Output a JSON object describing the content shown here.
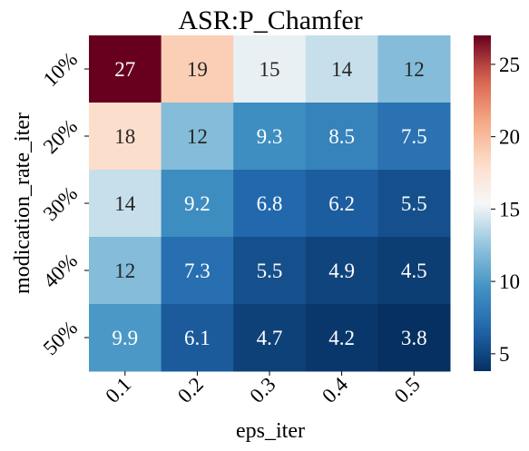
{
  "chart_data": {
    "type": "heatmap",
    "title": "ASR:P_Chamfer",
    "xlabel": "eps_iter",
    "ylabel": "modication_rate_iter",
    "x_categories": [
      "0.1",
      "0.2",
      "0.3",
      "0.4",
      "0.5"
    ],
    "y_categories": [
      "10%",
      "20%",
      "30%",
      "40%",
      "50%"
    ],
    "values": [
      [
        27,
        19,
        15,
        14,
        12
      ],
      [
        18,
        12,
        9.3,
        8.5,
        7.5
      ],
      [
        14,
        9.2,
        6.8,
        6.2,
        5.5
      ],
      [
        12,
        7.3,
        5.5,
        4.9,
        4.5
      ],
      [
        9.9,
        6.1,
        4.7,
        4.2,
        3.8
      ]
    ],
    "colormap": "RdBu_r",
    "vmin": 3.8,
    "vmax": 27,
    "colorbar_ticks": [
      "5",
      "10",
      "15",
      "20",
      "25"
    ]
  }
}
